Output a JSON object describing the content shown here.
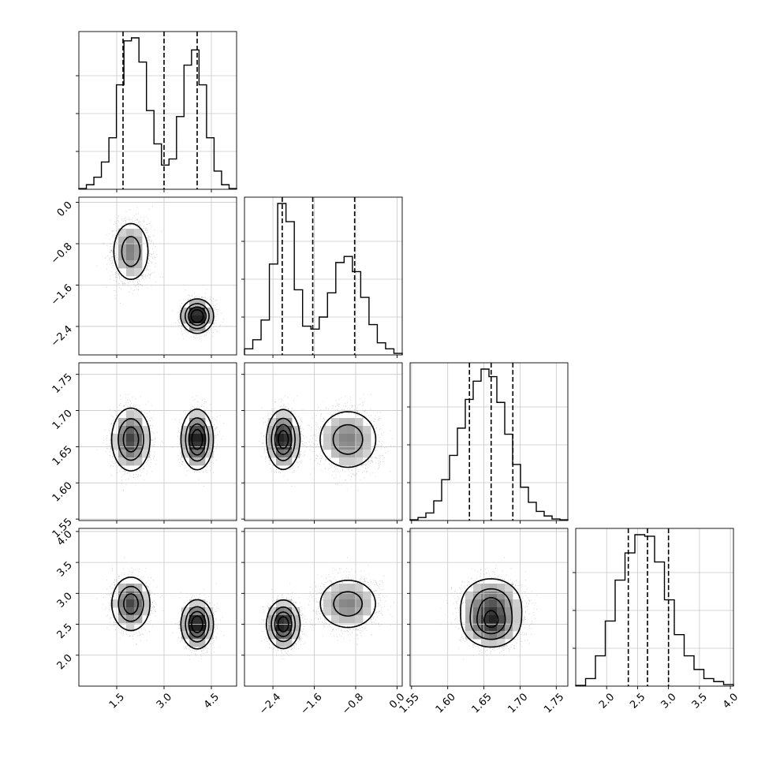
{
  "chart_data": {
    "type": "corner",
    "title": "",
    "grid": true,
    "parameters": [
      {
        "label": "",
        "range": [
          0.3,
          5.3
        ],
        "ticks": [
          1.5,
          3.0,
          4.5
        ],
        "tick_labels": [
          "1.5",
          "3.0",
          "4.5"
        ],
        "quantiles": [
          1.7,
          3.0,
          4.05
        ]
      },
      {
        "label": "",
        "range": [
          -2.95,
          0.1
        ],
        "ticks": [
          -2.4,
          -1.6,
          -0.8,
          0.0
        ],
        "tick_labels": [
          "−2.4",
          "−1.6",
          "−0.8",
          "0.0"
        ],
        "quantiles": [
          -2.22,
          -1.63,
          -0.82
        ]
      },
      {
        "label": "",
        "range": [
          1.548,
          1.766
        ],
        "ticks": [
          1.55,
          1.6,
          1.65,
          1.7,
          1.75
        ],
        "tick_labels": [
          "1.55",
          "1.60",
          "1.65",
          "1.70",
          "1.75"
        ],
        "quantiles": [
          1.63,
          1.66,
          1.69
        ]
      },
      {
        "label": "",
        "range": [
          1.5,
          4.05
        ],
        "ticks": [
          2.0,
          2.5,
          3.0,
          3.5,
          4.0
        ],
        "tick_labels": [
          "2.0",
          "2.5",
          "3.0",
          "3.5",
          "4.0"
        ],
        "quantiles": [
          2.35,
          2.66,
          3.0
        ]
      }
    ],
    "histograms": [
      [
        0.005,
        0.03,
        0.08,
        0.18,
        0.34,
        0.69,
        0.98,
        1.0,
        0.84,
        0.52,
        0.3,
        0.16,
        0.2,
        0.48,
        0.82,
        0.92,
        0.69,
        0.34,
        0.12,
        0.03,
        0.005
      ],
      [
        0.04,
        0.1,
        0.23,
        0.6,
        1.0,
        0.88,
        0.43,
        0.19,
        0.17,
        0.25,
        0.41,
        0.61,
        0.65,
        0.55,
        0.38,
        0.2,
        0.08,
        0.04,
        0.01
      ],
      [
        0.005,
        0.02,
        0.05,
        0.13,
        0.27,
        0.43,
        0.61,
        0.8,
        0.92,
        1.0,
        0.95,
        0.78,
        0.57,
        0.37,
        0.22,
        0.12,
        0.06,
        0.03,
        0.01,
        0.005
      ],
      [
        0.005,
        0.05,
        0.2,
        0.43,
        0.7,
        0.88,
        1.0,
        0.99,
        0.82,
        0.57,
        0.34,
        0.2,
        0.11,
        0.05,
        0.03,
        0.01
      ]
    ],
    "clusters": [
      {
        "mean": [
          1.95,
          -0.95,
          1.66,
          2.83
        ],
        "sd": [
          0.28,
          0.28,
          0.02,
          0.2
        ],
        "weight": 0.5
      },
      {
        "mean": [
          4.05,
          -2.2,
          1.66,
          2.5
        ],
        "sd": [
          0.22,
          0.14,
          0.018,
          0.17
        ],
        "weight": 0.5
      }
    ]
  }
}
